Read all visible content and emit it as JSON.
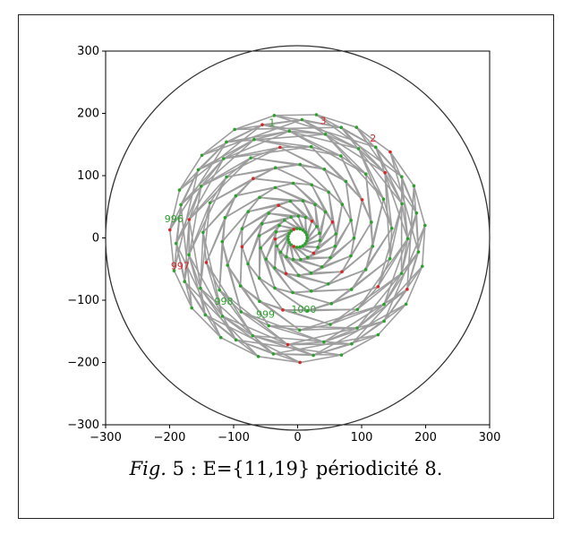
{
  "caption": {
    "fig_label": "Fig.",
    "fig_number": "5",
    "text": ": E={11,19} périodicité  8."
  },
  "chart_data": {
    "type": "scatter",
    "xlim": [
      -300,
      300
    ],
    "ylim": [
      -300,
      300
    ],
    "xticks": [
      -300,
      -200,
      -100,
      0,
      100,
      200,
      300
    ],
    "yticks": [
      300,
      200,
      100,
      0,
      -100,
      -200,
      -300
    ],
    "grid": false,
    "circle": {
      "center": [
        0,
        0
      ],
      "radius": 300,
      "color": "#333333"
    },
    "network": {
      "rings": [
        15,
        35,
        60,
        88,
        118,
        148,
        172,
        190,
        200
      ],
      "points_per_ring": 19,
      "twist": 0.55,
      "edge_color": "#9e9e9e",
      "point_colors": {
        "normal": "#2ca02c",
        "marked": "#d62728"
      }
    },
    "annotations": [
      {
        "text": "1",
        "x": -45,
        "y": 180,
        "color": "#2ca02c"
      },
      {
        "text": "3",
        "x": 35,
        "y": 183,
        "color": "#d62728"
      },
      {
        "text": "2",
        "x": 113,
        "y": 155,
        "color": "#d62728"
      },
      {
        "text": "996",
        "x": -208,
        "y": 25,
        "color": "#2ca02c"
      },
      {
        "text": "997",
        "x": -198,
        "y": -50,
        "color": "#d62728"
      },
      {
        "text": "998",
        "x": -130,
        "y": -107,
        "color": "#2ca02c"
      },
      {
        "text": "999",
        "x": -65,
        "y": -128,
        "color": "#2ca02c"
      },
      {
        "text": "1000",
        "x": -10,
        "y": -120,
        "color": "#2ca02c"
      }
    ]
  }
}
